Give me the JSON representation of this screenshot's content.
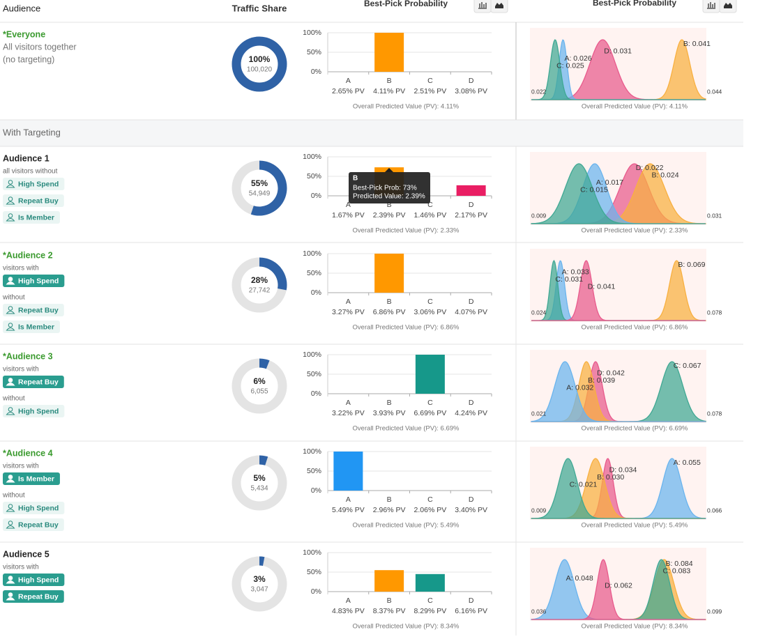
{
  "header": {
    "audience": "Audience",
    "traffic": "Traffic Share",
    "best_pick": "Best-Pick Probability",
    "best_pick_2": "Best-Pick Probability"
  },
  "section_label": "With Targeting",
  "rows": [
    {
      "name": "*Everyone",
      "name_color": "#3a9a2e",
      "lines": [
        {
          "text": "All visitors together"
        },
        {
          "text": "(no targeting)"
        }
      ],
      "traffic": {
        "type": "pie",
        "values": [
          100
        ],
        "value_labels": [
          "100%"
        ],
        "visitors_label": "100,020",
        "color": "#2f62a6"
      },
      "best_pick": {
        "type": "bar",
        "categories": [
          "A",
          "B",
          "C",
          "D"
        ],
        "values": [
          0,
          100,
          0,
          0
        ],
        "colors": [
          "#2196f3",
          "#ff9800",
          "#16988a",
          "#e91e63"
        ],
        "ylim": [
          0,
          100
        ],
        "yticks": [
          {
            "value": 0,
            "label": "0%"
          },
          {
            "value": 50,
            "label": "50%"
          },
          {
            "value": 100,
            "label": "100%"
          }
        ],
        "pv_labels": [
          "2.65% PV",
          "4.11% PV",
          "2.51% PV",
          "3.08% PV"
        ],
        "note": "Overall Predicted Value (PV): 4.11%"
      },
      "posterior": {
        "type": "density",
        "xlim": [
          0.022,
          0.044
        ],
        "xticks": [
          0.022,
          0.044
        ],
        "note": "Overall Predicted Value (PV): 4.11%",
        "series": [
          {
            "name": "B",
            "label": "B: 0.041",
            "mean": 0.041,
            "sd": 0.001,
            "color": "#f8b040"
          },
          {
            "name": "D",
            "label": "D: 0.031",
            "mean": 0.031,
            "sd": 0.0016,
            "color": "#e85a8c"
          },
          {
            "name": "A",
            "label": "A: 0.026",
            "mean": 0.026,
            "sd": 0.0005,
            "color": "#6ab4ee"
          },
          {
            "name": "C",
            "label": "C: 0.025",
            "mean": 0.025,
            "sd": 0.0006,
            "color": "#3fa893"
          }
        ]
      }
    },
    {
      "name": "Audience 1",
      "name_color": "#222222",
      "lines": [
        {
          "text": "all visitors without"
        },
        {
          "tag": "High Spend",
          "filled": false
        },
        {
          "tag": "Repeat Buy",
          "filled": false
        },
        {
          "tag": "Is Member",
          "filled": false
        }
      ],
      "traffic": {
        "type": "pie",
        "values": [
          55
        ],
        "value_labels": [
          "55%"
        ],
        "visitors_label": "54,949",
        "color": "#2f62a6"
      },
      "best_pick": {
        "type": "bar",
        "categories": [
          "A",
          "B",
          "C",
          "D"
        ],
        "values": [
          0,
          73,
          0,
          27
        ],
        "colors": [
          "#2196f3",
          "#ff9800",
          "#16988a",
          "#e91e63"
        ],
        "ylim": [
          0,
          100
        ],
        "yticks": [
          {
            "value": 0,
            "label": "0%"
          },
          {
            "value": 50,
            "label": "50%"
          },
          {
            "value": 100,
            "label": "100%"
          }
        ],
        "pv_labels": [
          "1.67% PV",
          "2.39% PV",
          "1.46% PV",
          "2.17% PV"
        ],
        "note": "Overall Predicted Value (PV): 2.33%",
        "tooltip": {
          "title": "B",
          "lines": [
            "Best-Pick Prob: 73%",
            "Predicted Value: 2.39%"
          ]
        }
      },
      "posterior": {
        "type": "density",
        "xlim": [
          0.009,
          0.031
        ],
        "xticks": [
          0.009,
          0.031
        ],
        "note": "Overall Predicted Value (PV): 2.33%",
        "series": [
          {
            "name": "D",
            "label": "D: 0.022",
            "mean": 0.022,
            "sd": 0.0018,
            "color": "#e85a8c"
          },
          {
            "name": "B",
            "label": "B: 0.024",
            "mean": 0.024,
            "sd": 0.0018,
            "color": "#f8b040"
          },
          {
            "name": "A",
            "label": "A: 0.017",
            "mean": 0.017,
            "sd": 0.0015,
            "color": "#6ab4ee"
          },
          {
            "name": "C",
            "label": "C: 0.015",
            "mean": 0.015,
            "sd": 0.0017,
            "color": "#3fa893"
          }
        ]
      }
    },
    {
      "name": "*Audience 2",
      "name_color": "#3a9a2e",
      "lines": [
        {
          "text": "visitors with"
        },
        {
          "tag": "High Spend",
          "filled": true
        },
        {
          "text": "without"
        },
        {
          "tag": "Repeat Buy",
          "filled": false
        },
        {
          "tag": "Is Member",
          "filled": false
        }
      ],
      "traffic": {
        "type": "pie",
        "values": [
          28
        ],
        "value_labels": [
          "28%"
        ],
        "visitors_label": "27,742",
        "color": "#2f62a6"
      },
      "best_pick": {
        "type": "bar",
        "categories": [
          "A",
          "B",
          "C",
          "D"
        ],
        "values": [
          0,
          100,
          0,
          0
        ],
        "colors": [
          "#2196f3",
          "#ff9800",
          "#16988a",
          "#e91e63"
        ],
        "ylim": [
          0,
          100
        ],
        "yticks": [
          {
            "value": 0,
            "label": "0%"
          },
          {
            "value": 50,
            "label": "50%"
          },
          {
            "value": 100,
            "label": "100%"
          }
        ],
        "pv_labels": [
          "3.27% PV",
          "6.86% PV",
          "3.06% PV",
          "4.07% PV"
        ],
        "note": "Overall Predicted Value (PV): 6.86%"
      },
      "posterior": {
        "type": "density",
        "xlim": [
          0.024,
          0.078
        ],
        "xticks": [
          0.024,
          0.078
        ],
        "note": "Overall Predicted Value (PV): 6.86%",
        "series": [
          {
            "name": "B",
            "label": "B: 0.069",
            "mean": 0.069,
            "sd": 0.0022,
            "color": "#f8b040"
          },
          {
            "name": "A",
            "label": "A: 0.033",
            "mean": 0.033,
            "sd": 0.0013,
            "color": "#6ab4ee"
          },
          {
            "name": "C",
            "label": "C: 0.031",
            "mean": 0.031,
            "sd": 0.0012,
            "color": "#3fa893"
          },
          {
            "name": "D",
            "label": "D: 0.041",
            "mean": 0.041,
            "sd": 0.0018,
            "color": "#e85a8c"
          }
        ]
      }
    },
    {
      "name": "*Audience 3",
      "name_color": "#3a9a2e",
      "lines": [
        {
          "text": "visitors with"
        },
        {
          "tag": "Repeat Buy",
          "filled": true
        },
        {
          "text": "without"
        },
        {
          "tag": "High Spend",
          "filled": false
        }
      ],
      "traffic": {
        "type": "pie",
        "values": [
          6
        ],
        "value_labels": [
          "6%"
        ],
        "visitors_label": "6,055",
        "color": "#2f62a6"
      },
      "best_pick": {
        "type": "bar",
        "categories": [
          "A",
          "B",
          "C",
          "D"
        ],
        "values": [
          0,
          0,
          100,
          0
        ],
        "colors": [
          "#2196f3",
          "#ff9800",
          "#16988a",
          "#e91e63"
        ],
        "ylim": [
          0,
          100
        ],
        "yticks": [
          {
            "value": 0,
            "label": "0%"
          },
          {
            "value": 50,
            "label": "50%"
          },
          {
            "value": 100,
            "label": "100%"
          }
        ],
        "pv_labels": [
          "3.22% PV",
          "3.93% PV",
          "6.69% PV",
          "4.24% PV"
        ],
        "note": "Overall Predicted Value (PV): 6.69%"
      },
      "posterior": {
        "type": "density",
        "xlim": [
          0.021,
          0.078
        ],
        "xticks": [
          0.021,
          0.078
        ],
        "note": "Overall Predicted Value (PV): 6.69%",
        "series": [
          {
            "name": "C",
            "label": "C: 0.067",
            "mean": 0.067,
            "sd": 0.0035,
            "color": "#3fa893"
          },
          {
            "name": "D",
            "label": "D: 0.042",
            "mean": 0.042,
            "sd": 0.0022,
            "color": "#e85a8c"
          },
          {
            "name": "B",
            "label": "B: 0.039",
            "mean": 0.039,
            "sd": 0.0025,
            "color": "#f8b040"
          },
          {
            "name": "A",
            "label": "A: 0.032",
            "mean": 0.032,
            "sd": 0.0033,
            "color": "#6ab4ee"
          }
        ]
      }
    },
    {
      "name": "*Audience 4",
      "name_color": "#3a9a2e",
      "lines": [
        {
          "text": "visitors with"
        },
        {
          "tag": "Is Member",
          "filled": true
        },
        {
          "text": "without"
        },
        {
          "tag": "High Spend",
          "filled": false
        },
        {
          "tag": "Repeat Buy",
          "filled": false
        }
      ],
      "traffic": {
        "type": "pie",
        "values": [
          5
        ],
        "value_labels": [
          "5%"
        ],
        "visitors_label": "5,434",
        "color": "#2f62a6"
      },
      "best_pick": {
        "type": "bar",
        "categories": [
          "A",
          "B",
          "C",
          "D"
        ],
        "values": [
          100,
          0,
          0,
          0
        ],
        "colors": [
          "#2196f3",
          "#ff9800",
          "#16988a",
          "#e91e63"
        ],
        "ylim": [
          0,
          100
        ],
        "yticks": [
          {
            "value": 0,
            "label": "0%"
          },
          {
            "value": 50,
            "label": "50%"
          },
          {
            "value": 100,
            "label": "100%"
          }
        ],
        "pv_labels": [
          "5.49% PV",
          "2.96% PV",
          "2.06% PV",
          "3.40% PV"
        ],
        "note": "Overall Predicted Value (PV): 5.49%"
      },
      "posterior": {
        "type": "density",
        "xlim": [
          0.009,
          0.066
        ],
        "xticks": [
          0.009,
          0.066
        ],
        "note": "Overall Predicted Value (PV): 5.49%",
        "series": [
          {
            "name": "A",
            "label": "A: 0.055",
            "mean": 0.055,
            "sd": 0.003,
            "color": "#6ab4ee"
          },
          {
            "name": "D",
            "label": "D: 0.034",
            "mean": 0.034,
            "sd": 0.0018,
            "color": "#e85a8c"
          },
          {
            "name": "B",
            "label": "B: 0.030",
            "mean": 0.03,
            "sd": 0.003,
            "color": "#f8b040"
          },
          {
            "name": "C",
            "label": "C: 0.021",
            "mean": 0.021,
            "sd": 0.003,
            "color": "#3fa893"
          }
        ]
      }
    },
    {
      "name": "Audience 5",
      "name_color": "#222222",
      "lines": [
        {
          "text": "visitors with"
        },
        {
          "tag": "High Spend",
          "filled": true
        },
        {
          "tag": "Repeat Buy",
          "filled": true
        }
      ],
      "traffic": {
        "type": "pie",
        "values": [
          3
        ],
        "value_labels": [
          "3%"
        ],
        "visitors_label": "3,047",
        "color": "#2f62a6"
      },
      "best_pick": {
        "type": "bar",
        "categories": [
          "A",
          "B",
          "C",
          "D"
        ],
        "values": [
          0,
          55,
          45,
          0
        ],
        "colors": [
          "#2196f3",
          "#ff9800",
          "#16988a",
          "#e91e63"
        ],
        "ylim": [
          0,
          100
        ],
        "yticks": [
          {
            "value": 0,
            "label": "0%"
          },
          {
            "value": 50,
            "label": "50%"
          },
          {
            "value": 100,
            "label": "100%"
          }
        ],
        "pv_labels": [
          "4.83% PV",
          "8.37% PV",
          "8.29% PV",
          "6.16% PV"
        ],
        "note": "Overall Predicted Value (PV): 8.34%"
      },
      "posterior": {
        "type": "density",
        "xlim": [
          0.036,
          0.099
        ],
        "xticks": [
          0.036,
          0.099
        ],
        "note": "Overall Predicted Value (PV): 8.34%",
        "series": [
          {
            "name": "B",
            "label": "B: 0.084",
            "mean": 0.084,
            "sd": 0.0035,
            "color": "#f8b040"
          },
          {
            "name": "C",
            "label": "C: 0.083",
            "mean": 0.083,
            "sd": 0.003,
            "color": "#3fa893"
          },
          {
            "name": "A",
            "label": "A: 0.048",
            "mean": 0.048,
            "sd": 0.0035,
            "color": "#6ab4ee"
          },
          {
            "name": "D",
            "label": "D: 0.062",
            "mean": 0.062,
            "sd": 0.0022,
            "color": "#e85a8c"
          }
        ]
      }
    }
  ]
}
